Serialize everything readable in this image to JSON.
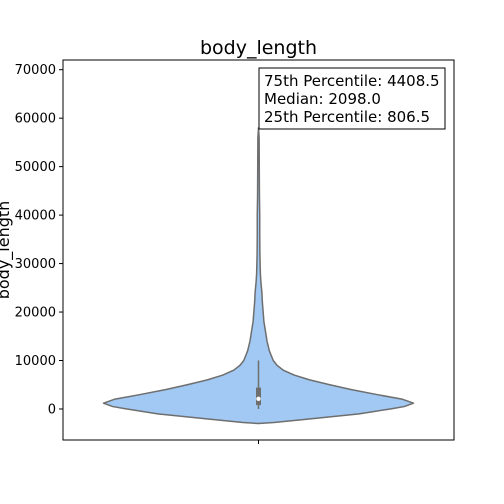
{
  "chart_data": {
    "type": "violin",
    "title": "body_length",
    "xlabel": "",
    "ylabel": "body_length",
    "ylim": [
      -6400,
      72000
    ],
    "yticks": [
      0,
      10000,
      20000,
      30000,
      40000,
      50000,
      60000,
      70000
    ],
    "ytick_labels": [
      "0",
      "10000",
      "20000",
      "30000",
      "40000",
      "50000",
      "60000",
      "70000"
    ],
    "grid": false,
    "fill_color": "#a1c9f4",
    "edge_color": "#6e6e6e",
    "stats": {
      "q75": 4408.5,
      "median": 2098.0,
      "q25": 806.5,
      "whisker_low": 0,
      "whisker_high": 10000
    },
    "density_profile": [
      {
        "y": -3000,
        "w": 0.0
      },
      {
        "y": -2800,
        "w": 0.1
      },
      {
        "y": -2000,
        "w": 0.35
      },
      {
        "y": -1000,
        "w": 0.65
      },
      {
        "y": 0,
        "w": 0.85
      },
      {
        "y": 500,
        "w": 0.94
      },
      {
        "y": 1200,
        "w": 1.0
      },
      {
        "y": 2000,
        "w": 0.93
      },
      {
        "y": 3000,
        "w": 0.76
      },
      {
        "y": 4000,
        "w": 0.6
      },
      {
        "y": 5000,
        "w": 0.46
      },
      {
        "y": 6000,
        "w": 0.33
      },
      {
        "y": 7000,
        "w": 0.23
      },
      {
        "y": 8000,
        "w": 0.16
      },
      {
        "y": 9000,
        "w": 0.12
      },
      {
        "y": 10000,
        "w": 0.095
      },
      {
        "y": 12000,
        "w": 0.07
      },
      {
        "y": 14000,
        "w": 0.055
      },
      {
        "y": 16000,
        "w": 0.045
      },
      {
        "y": 18000,
        "w": 0.035
      },
      {
        "y": 20000,
        "w": 0.03
      },
      {
        "y": 22000,
        "w": 0.025
      },
      {
        "y": 24000,
        "w": 0.022
      },
      {
        "y": 26000,
        "w": 0.016
      },
      {
        "y": 28000,
        "w": 0.012
      },
      {
        "y": 32000,
        "w": 0.009
      },
      {
        "y": 36000,
        "w": 0.008
      },
      {
        "y": 40000,
        "w": 0.008
      },
      {
        "y": 44000,
        "w": 0.006
      },
      {
        "y": 50000,
        "w": 0.005
      },
      {
        "y": 56000,
        "w": 0.004
      },
      {
        "y": 58000,
        "w": 0.0
      }
    ],
    "annotation": {
      "lines": [
        "75th Percentile: 4408.5",
        "Median: 2098.0",
        "25th Percentile: 806.5"
      ],
      "placement": "top-right"
    }
  }
}
